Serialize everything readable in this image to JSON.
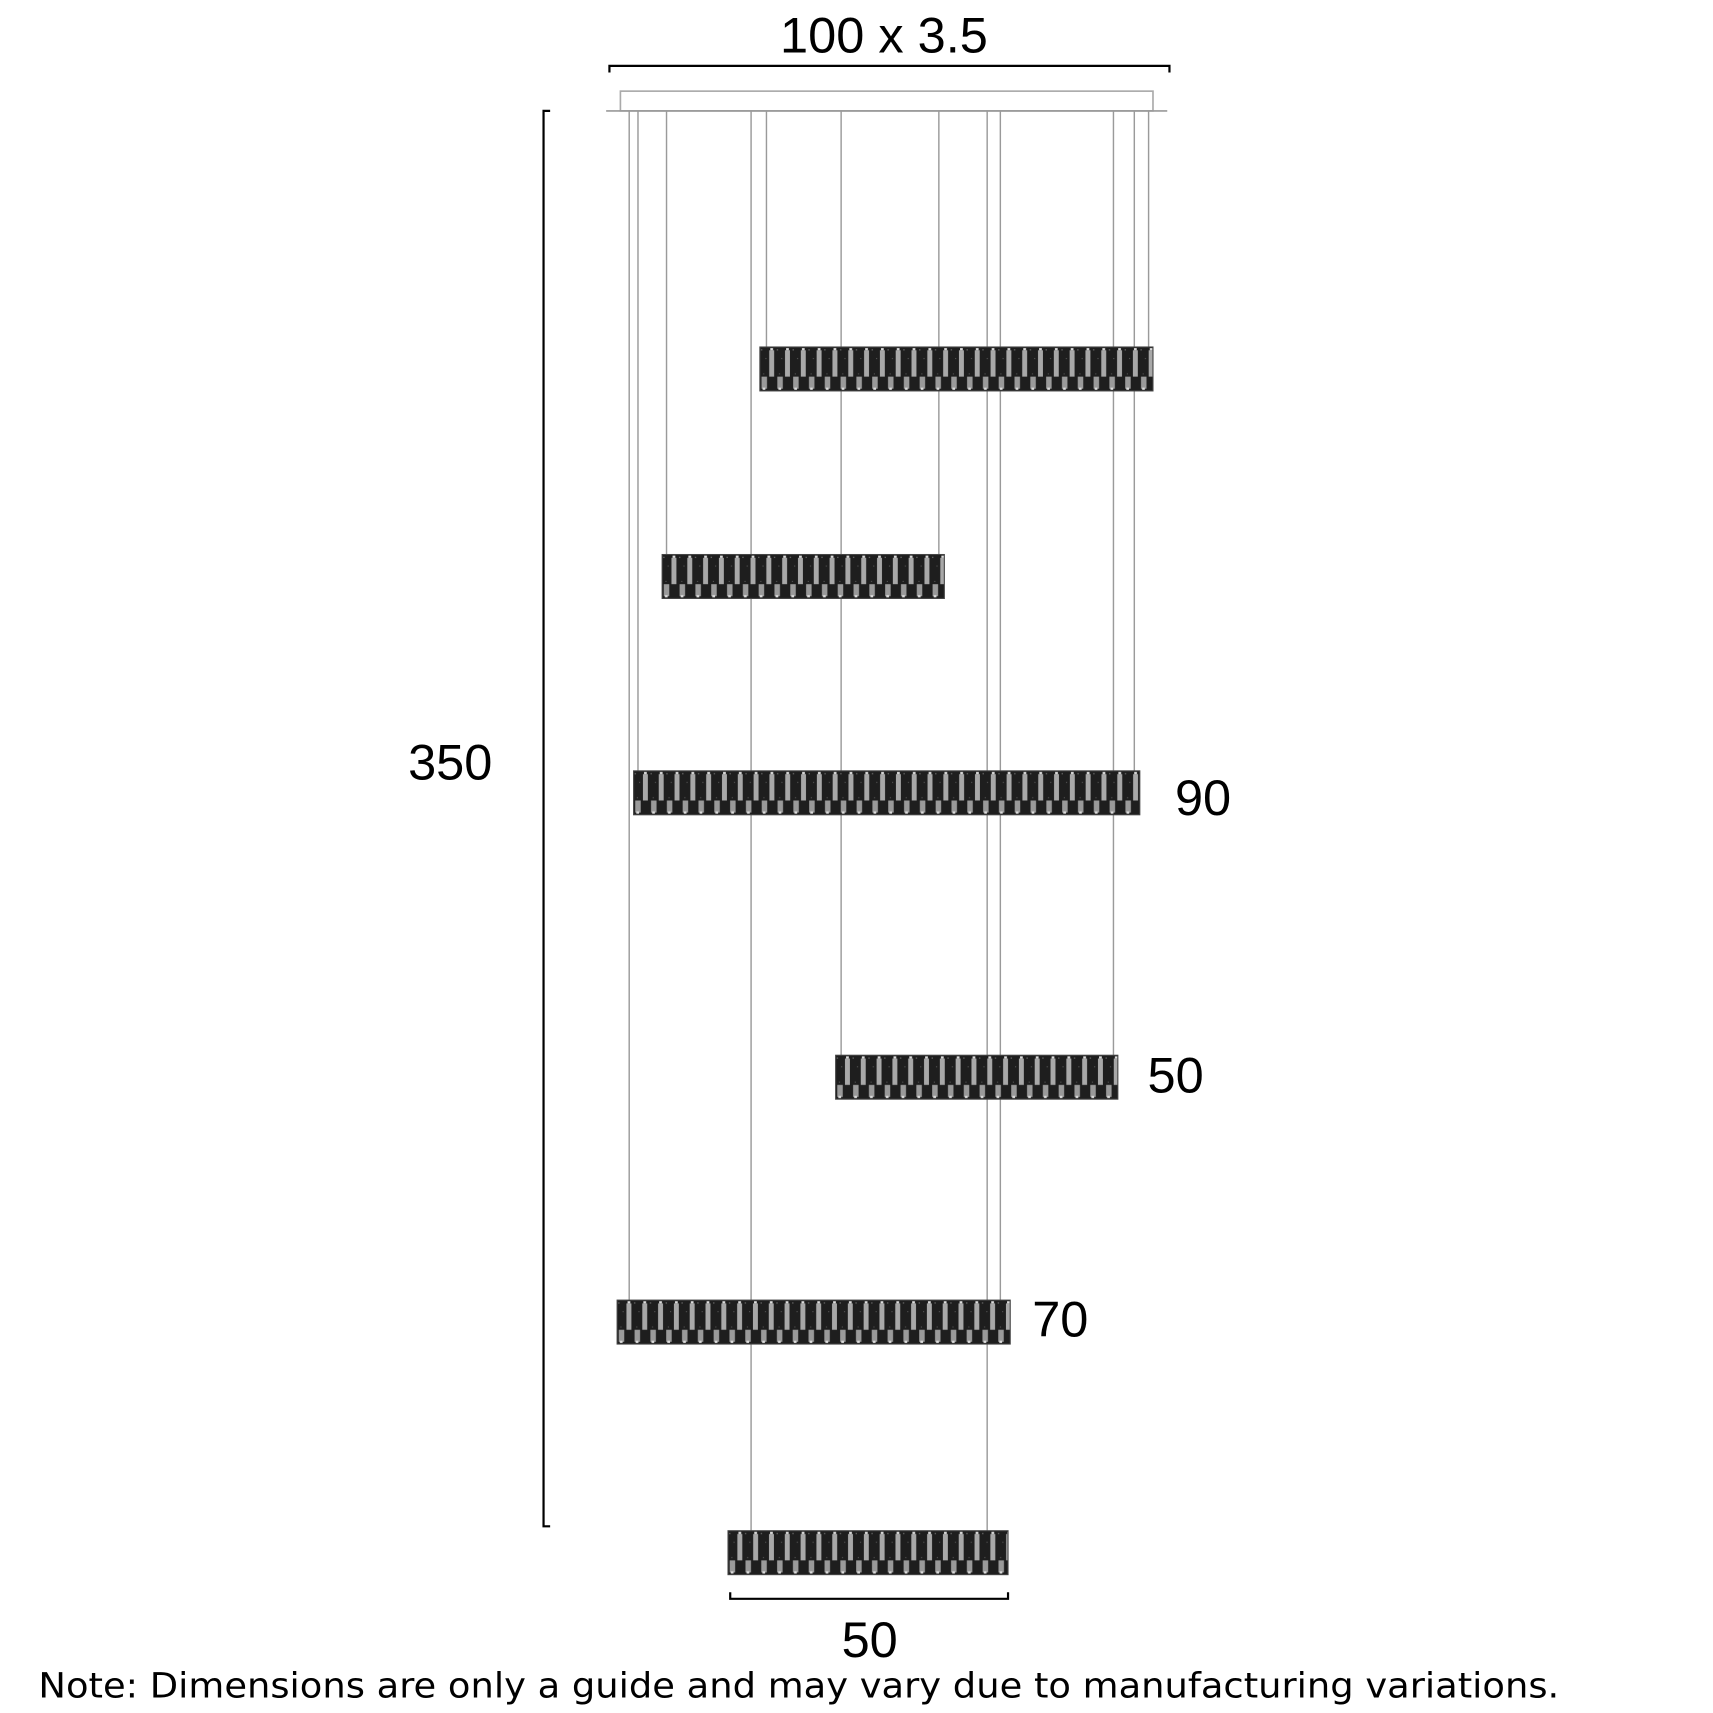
{
  "dimensions": {
    "top_width": "100 x 3.5",
    "overall_height": "350",
    "bar_label_3": "90",
    "bar_label_4": "50",
    "bar_label_5": "70",
    "bottom_width": "50"
  },
  "note": "Note: Dimensions are only a guide and may vary due to manufacturing variations.",
  "colors": {
    "bar_dark": "#1e1e1e",
    "bar_slat": "#a8a8a8",
    "cable": "#9a9a9a",
    "line": "#000000"
  }
}
